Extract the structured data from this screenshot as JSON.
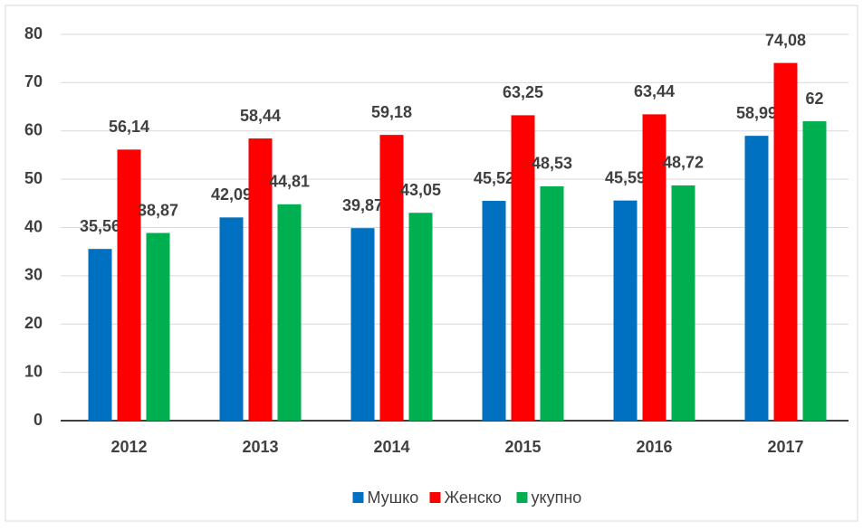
{
  "chart_data": {
    "type": "bar",
    "categories": [
      "2012",
      "2013",
      "2014",
      "2015",
      "2016",
      "2017"
    ],
    "series": [
      {
        "name": "Мушко",
        "color": "#0070c0",
        "values": [
          35.56,
          42.09,
          39.87,
          45.52,
          45.59,
          58.99
        ],
        "value_labels": [
          "35,56",
          "42,09",
          "39,87",
          "45,52",
          "45,59",
          "58,99"
        ]
      },
      {
        "name": "Женско",
        "color": "#ff0000",
        "values": [
          56.14,
          58.44,
          59.18,
          63.25,
          63.44,
          74.08
        ],
        "value_labels": [
          "56,14",
          "58,44",
          "59,18",
          "63,25",
          "63,44",
          "74,08"
        ]
      },
      {
        "name": "укупно",
        "color": "#00b050",
        "values": [
          38.87,
          44.81,
          43.05,
          48.53,
          48.72,
          62
        ],
        "value_labels": [
          "38,87",
          "44,81",
          "43,05",
          "48,53",
          "48,72",
          "62"
        ]
      }
    ],
    "ylim": [
      0,
      80
    ],
    "yticks": [
      0,
      10,
      20,
      30,
      40,
      50,
      60,
      70,
      80
    ],
    "grid": true,
    "legend": "bottom"
  }
}
